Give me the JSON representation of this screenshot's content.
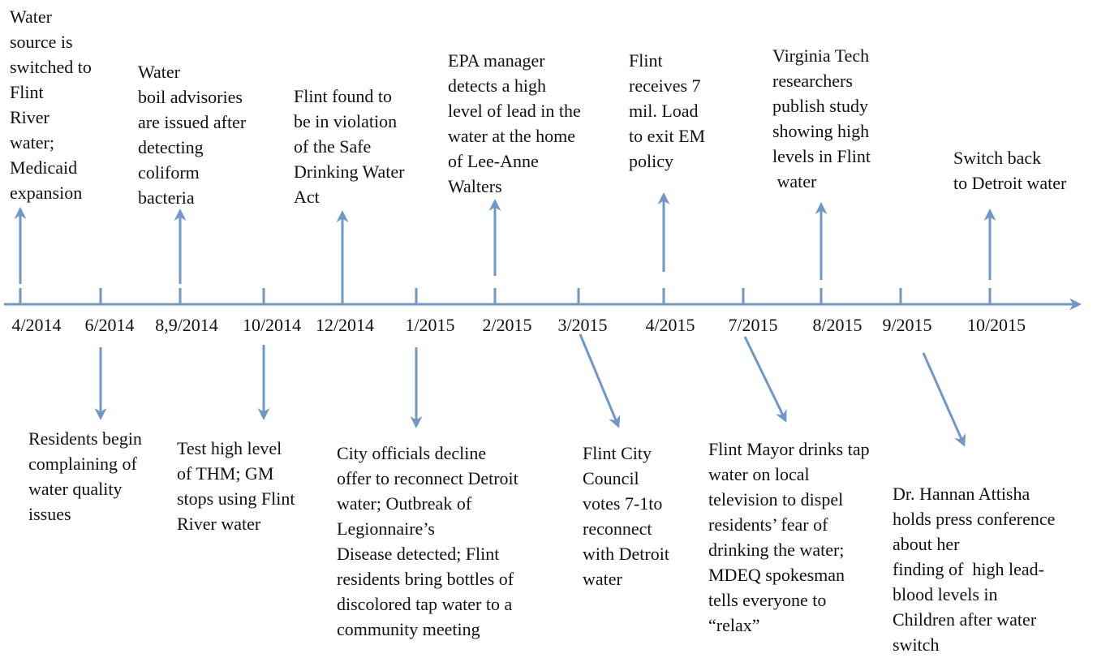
{
  "timeline": {
    "dates": [
      "4/2014",
      "6/2014",
      "8,9/2014",
      "10/2014",
      "12/2014",
      "1/2015",
      "2/2015",
      "3/2015",
      "4/2015",
      "7/2015",
      "8/2015",
      "9/2015",
      "10/2015"
    ],
    "events": [
      {
        "lines": [
          "Water",
          "source is",
          "switched to",
          "Flint",
          "River",
          "water;",
          "Medicaid",
          "expansion"
        ]
      },
      {
        "lines": [
          "Residents begin",
          "complaining of",
          "water quality",
          "issues"
        ]
      },
      {
        "lines": [
          "Water",
          "boil advisories",
          "are issued after",
          "detecting",
          "coliform",
          "bacteria"
        ]
      },
      {
        "lines": [
          "Test high level",
          "of THM; GM",
          "stops using Flint",
          "River water"
        ]
      },
      {
        "lines": [
          "Flint found to",
          "be in violation",
          "of the Safe",
          "Drinking Water",
          "Act"
        ]
      },
      {
        "lines": [
          "City officials decline",
          "offer to reconnect Detroit",
          "water; Outbreak of",
          "Legionnaire’s",
          "Disease detected; Flint",
          "residents bring bottles of",
          "discolored tap water to a",
          "community meeting"
        ]
      },
      {
        "lines": [
          "EPA manager",
          "detects a high",
          "level of lead in the",
          "water at the home",
          "of Lee-Anne",
          "Walters"
        ]
      },
      {
        "lines": [
          "Flint City",
          "Council",
          "votes 7-1to",
          "reconnect",
          "with Detroit",
          "water"
        ]
      },
      {
        "lines": [
          "Flint",
          "receives 7",
          "mil. Load",
          "to exit EM",
          "policy"
        ]
      },
      {
        "lines": [
          "Flint Mayor drinks tap",
          "water on local",
          "television to dispel",
          "residents’ fear of",
          "drinking the water;",
          "MDEQ spokesman",
          "tells everyone to",
          "“relax”"
        ]
      },
      {
        "lines": [
          "Virginia Tech",
          "researchers",
          "publish study",
          "showing high",
          "levels in Flint",
          " water"
        ]
      },
      {
        "lines": [
          "Dr. Hannan Attisha",
          "holds press conference",
          "about her",
          "finding of  high lead-",
          "blood levels in",
          "Children after water",
          "switch"
        ]
      },
      {
        "lines": [
          "Switch back",
          "to Detroit water"
        ]
      }
    ]
  }
}
